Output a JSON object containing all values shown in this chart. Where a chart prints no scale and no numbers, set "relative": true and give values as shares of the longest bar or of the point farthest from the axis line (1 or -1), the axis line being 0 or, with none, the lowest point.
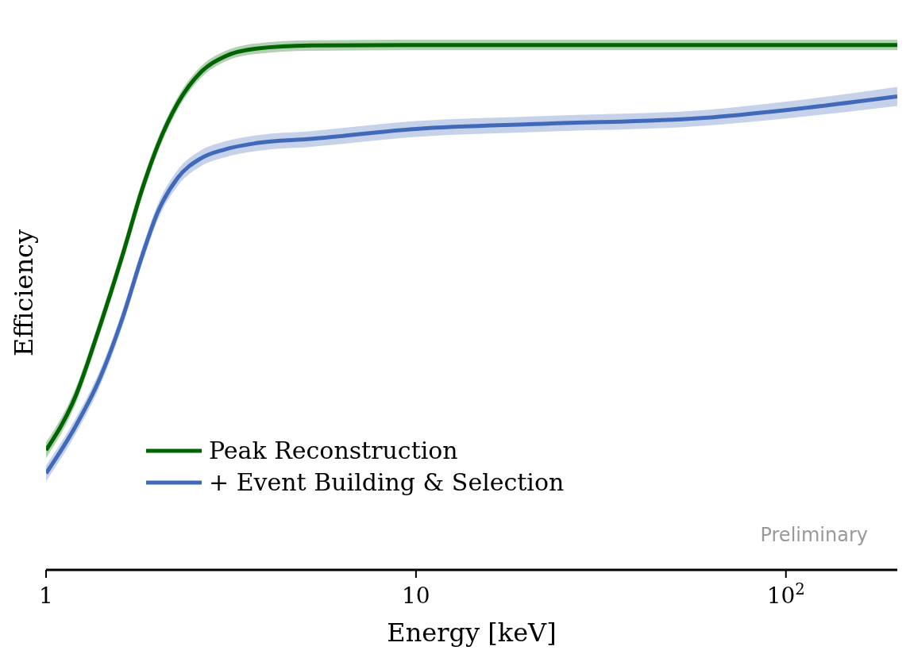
{
  "chart_data": {
    "type": "line",
    "xlabel": "Energy [keV]",
    "ylabel": "Efficiency",
    "relative": true,
    "log": "x",
    "xlim": [
      1,
      200
    ],
    "xticks": [
      1,
      10,
      {
        "value": 100,
        "label": "10$^{2}$"
      }
    ],
    "tick_labels": "x",
    "legend": "bottom left",
    "grid": false,
    "marker": "none",
    "line_style": "solid",
    "annotations": [
      "Preliminary"
    ],
    "series": [
      {
        "name": "Peak Reconstruction",
        "color": "#006400",
        "x": [
          1,
          1.2,
          1.39,
          1.61,
          1.82,
          2.0,
          2.27,
          2.62,
          3.04,
          3.7,
          5.2,
          10,
          200
        ],
        "values": [
          0.228,
          0.33,
          0.459,
          0.6,
          0.726,
          0.807,
          0.889,
          0.948,
          0.978,
          0.993,
          0.999,
          1,
          1
        ],
        "lower": [
          0.213,
          0.315,
          0.444,
          0.585,
          0.711,
          0.794,
          0.877,
          0.937,
          0.968,
          0.983,
          0.989,
          0.99,
          0.99
        ],
        "upper": [
          0.243,
          0.345,
          0.474,
          0.615,
          0.741,
          0.82,
          0.901,
          0.959,
          0.988,
          1.003,
          1.009,
          1.01,
          1.01
        ]
      },
      {
        "name": "+ Event Building & Selection",
        "color": "#4169b9",
        "x": [
          1,
          1.2,
          1.39,
          1.61,
          1.82,
          2.0,
          2.27,
          2.62,
          3.04,
          3.7,
          5.2,
          10,
          22.7,
          60,
          100,
          200
        ],
        "values": [
          0.184,
          0.273,
          0.361,
          0.48,
          0.599,
          0.68,
          0.747,
          0.784,
          0.801,
          0.813,
          0.821,
          0.84,
          0.85,
          0.861,
          0.876,
          0.902
        ],
        "lower": [
          0.169,
          0.258,
          0.346,
          0.465,
          0.584,
          0.665,
          0.732,
          0.769,
          0.786,
          0.798,
          0.806,
          0.825,
          0.835,
          0.846,
          0.86,
          0.884
        ],
        "upper": [
          0.199,
          0.288,
          0.376,
          0.495,
          0.614,
          0.695,
          0.762,
          0.799,
          0.816,
          0.828,
          0.836,
          0.855,
          0.865,
          0.876,
          0.892,
          0.92
        ]
      }
    ]
  }
}
